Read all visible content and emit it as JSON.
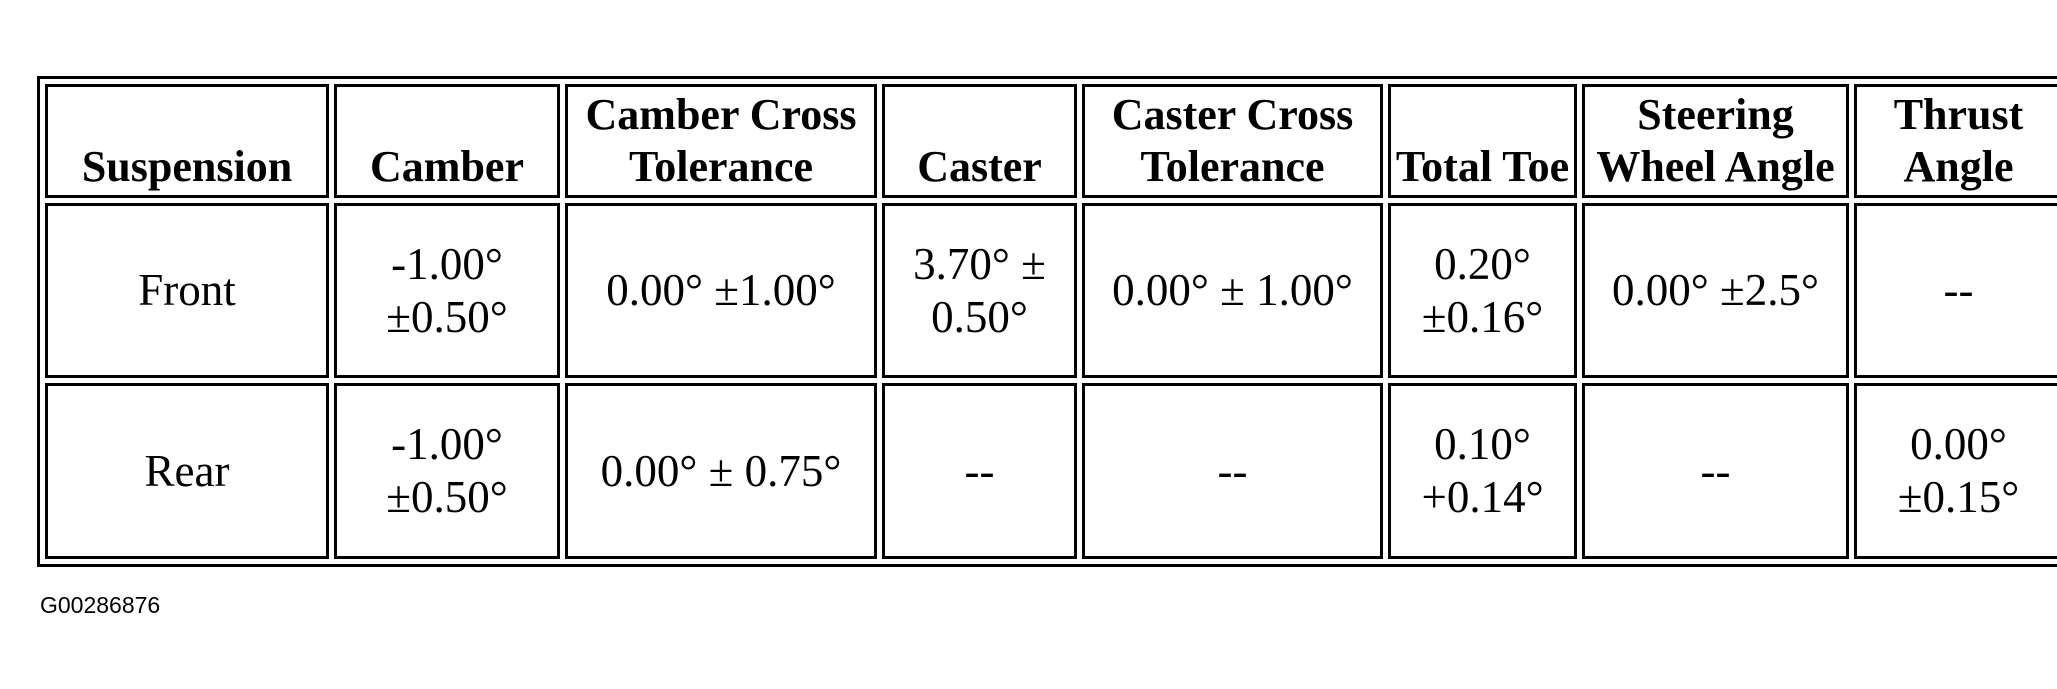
{
  "table": {
    "header": [
      "Suspension",
      "Camber",
      "Camber Cross Tolerance",
      "Caster",
      "Caster Cross Tolerance",
      "Total Toe",
      "Steering Wheel Angle",
      "Thrust Angle"
    ],
    "rows": [
      [
        "Front",
        "-1.00° ±0.50°",
        "0.00° ±1.00°",
        "3.70° ± 0.50°",
        "0.00° ± 1.00°",
        "0.20° ±0.16°",
        "0.00° ±2.5°",
        "--"
      ],
      [
        "Rear",
        "-1.00° ±0.50°",
        "0.00° ± 0.75°",
        "--",
        "--",
        "0.10° +0.14°",
        "--",
        "0.00° ±0.15°"
      ]
    ]
  },
  "caption": "G00286876"
}
